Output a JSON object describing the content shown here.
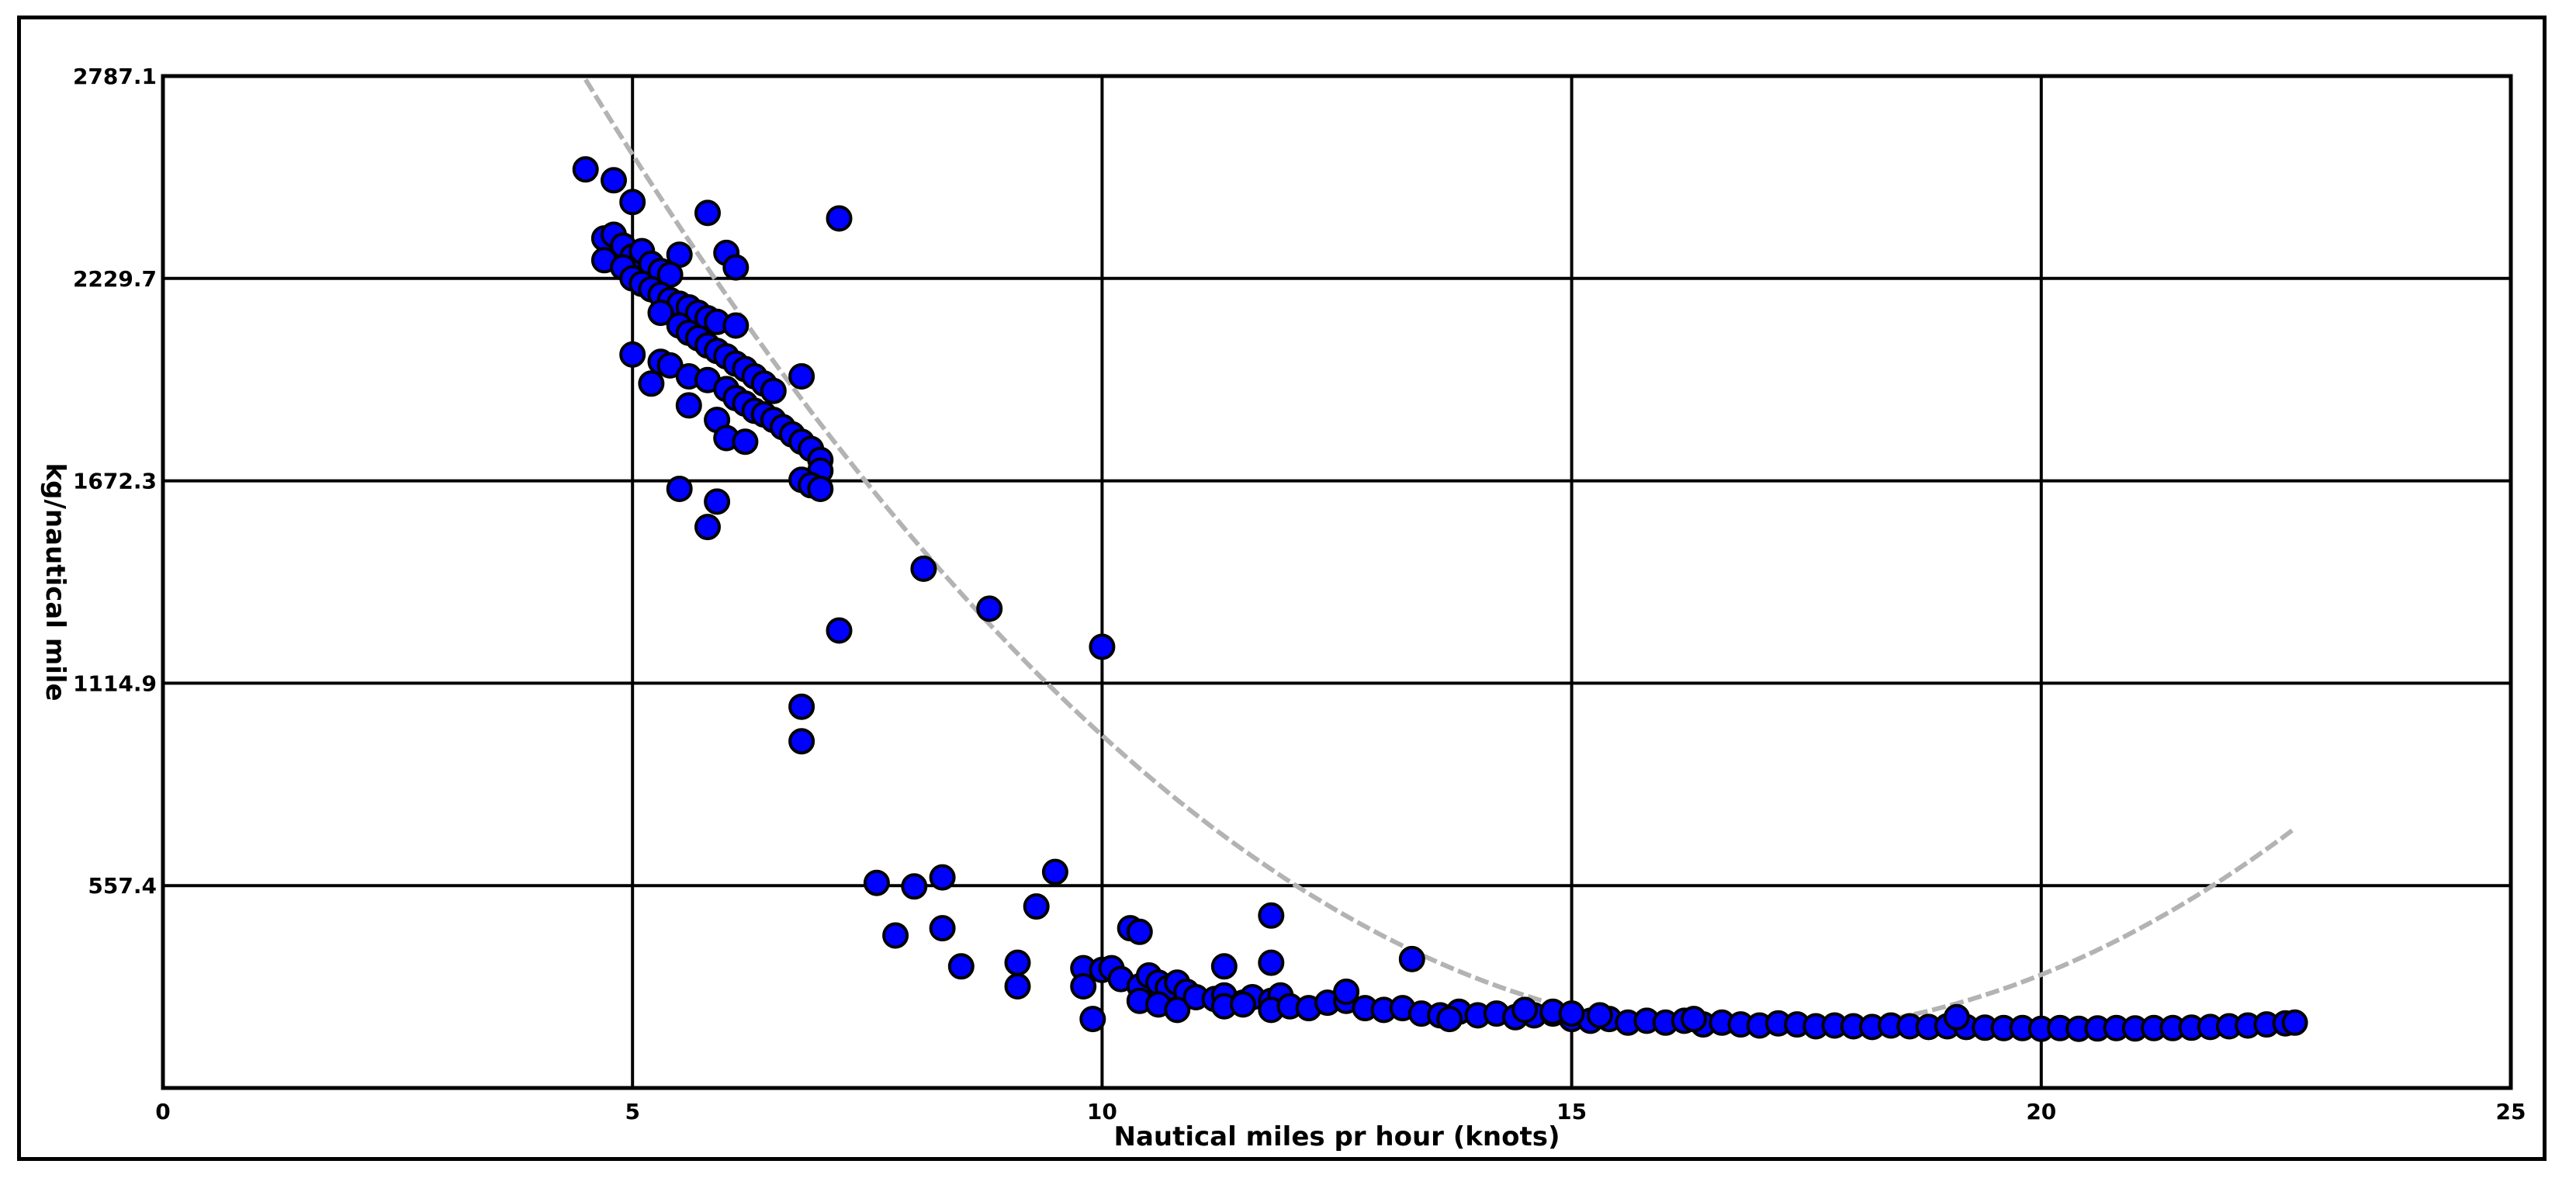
{
  "chart_data": {
    "type": "scatter",
    "title": "",
    "xlabel": "Nautical miles pr hour (knots)",
    "ylabel": "kg/nautical mile",
    "xlim": [
      0,
      25
    ],
    "ylim": [
      0,
      2787.1
    ],
    "x_ticks": [
      "0",
      "5",
      "10",
      "15",
      "20",
      "25"
    ],
    "y_ticks": [
      "557.4",
      "1114.9",
      "1672.3",
      "2229.7",
      "2787.1"
    ],
    "grid": true,
    "legend": "none",
    "colors": {
      "point_fill": "#0000ff",
      "point_stroke": "#000000",
      "trend": "#b3b3b3",
      "grid": "#000000"
    },
    "series": [
      {
        "points": [
          [
            4.5,
            2530
          ],
          [
            4.8,
            2500
          ],
          [
            5.0,
            2440
          ],
          [
            5.8,
            2410
          ],
          [
            7.2,
            2395
          ],
          [
            6.0,
            2300
          ],
          [
            6.1,
            2260
          ],
          [
            5.5,
            2295
          ],
          [
            4.7,
            2340
          ],
          [
            4.8,
            2350
          ],
          [
            4.9,
            2320
          ],
          [
            5.0,
            2290
          ],
          [
            5.1,
            2305
          ],
          [
            5.2,
            2270
          ],
          [
            5.3,
            2250
          ],
          [
            5.4,
            2240
          ],
          [
            4.7,
            2280
          ],
          [
            4.9,
            2260
          ],
          [
            5.0,
            2230
          ],
          [
            5.1,
            2215
          ],
          [
            5.2,
            2200
          ],
          [
            5.3,
            2185
          ],
          [
            5.4,
            2170
          ],
          [
            5.5,
            2160
          ],
          [
            5.6,
            2150
          ],
          [
            5.7,
            2135
          ],
          [
            5.8,
            2120
          ],
          [
            5.9,
            2110
          ],
          [
            6.1,
            2100
          ],
          [
            5.3,
            2135
          ],
          [
            5.5,
            2100
          ],
          [
            5.6,
            2080
          ],
          [
            5.7,
            2065
          ],
          [
            5.8,
            2045
          ],
          [
            5.9,
            2030
          ],
          [
            6.0,
            2015
          ],
          [
            6.1,
            1995
          ],
          [
            6.2,
            1980
          ],
          [
            6.3,
            1960
          ],
          [
            6.4,
            1940
          ],
          [
            6.5,
            1920
          ],
          [
            5.0,
            2020
          ],
          [
            5.3,
            2000
          ],
          [
            5.2,
            1940
          ],
          [
            5.4,
            1990
          ],
          [
            5.6,
            1960
          ],
          [
            5.8,
            1950
          ],
          [
            6.0,
            1925
          ],
          [
            6.1,
            1900
          ],
          [
            6.2,
            1885
          ],
          [
            6.3,
            1865
          ],
          [
            6.4,
            1855
          ],
          [
            6.5,
            1840
          ],
          [
            6.6,
            1820
          ],
          [
            6.7,
            1800
          ],
          [
            6.8,
            1780
          ],
          [
            6.9,
            1760
          ],
          [
            7.0,
            1730
          ],
          [
            7.0,
            1700
          ],
          [
            6.8,
            1675
          ],
          [
            6.9,
            1660
          ],
          [
            7.0,
            1650
          ],
          [
            5.6,
            1880
          ],
          [
            5.9,
            1840
          ],
          [
            6.0,
            1790
          ],
          [
            6.2,
            1780
          ],
          [
            6.8,
            1960
          ],
          [
            5.5,
            1650
          ],
          [
            5.9,
            1615
          ],
          [
            5.8,
            1545
          ],
          [
            8.1,
            1430
          ],
          [
            8.8,
            1320
          ],
          [
            7.2,
            1260
          ],
          [
            10.0,
            1215
          ],
          [
            6.8,
            1050
          ],
          [
            6.8,
            955
          ],
          [
            7.6,
            565
          ],
          [
            8.0,
            555
          ],
          [
            8.3,
            580
          ],
          [
            9.5,
            595
          ],
          [
            9.3,
            500
          ],
          [
            7.8,
            420
          ],
          [
            8.3,
            440
          ],
          [
            8.5,
            335
          ],
          [
            9.1,
            345
          ],
          [
            9.1,
            280
          ],
          [
            9.8,
            330
          ],
          [
            9.8,
            280
          ],
          [
            10.0,
            325
          ],
          [
            10.1,
            330
          ],
          [
            10.3,
            440
          ],
          [
            10.4,
            430
          ],
          [
            10.2,
            300
          ],
          [
            10.4,
            280
          ],
          [
            10.5,
            310
          ],
          [
            10.6,
            290
          ],
          [
            10.7,
            275
          ],
          [
            10.8,
            290
          ],
          [
            10.9,
            265
          ],
          [
            10.4,
            240
          ],
          [
            10.6,
            230
          ],
          [
            10.8,
            215
          ],
          [
            9.9,
            190
          ],
          [
            11.0,
            250
          ],
          [
            11.2,
            245
          ],
          [
            11.3,
            255
          ],
          [
            11.5,
            235
          ],
          [
            11.6,
            250
          ],
          [
            11.8,
            240
          ],
          [
            11.9,
            255
          ],
          [
            11.3,
            225
          ],
          [
            11.5,
            230
          ],
          [
            11.8,
            215
          ],
          [
            12.0,
            225
          ],
          [
            12.2,
            220
          ],
          [
            12.4,
            235
          ],
          [
            12.6,
            240
          ],
          [
            12.8,
            220
          ],
          [
            13.0,
            215
          ],
          [
            13.2,
            220
          ],
          [
            13.4,
            205
          ],
          [
            13.6,
            200
          ],
          [
            13.8,
            210
          ],
          [
            14.0,
            200
          ],
          [
            14.2,
            205
          ],
          [
            14.4,
            195
          ],
          [
            14.6,
            200
          ],
          [
            14.8,
            205
          ],
          [
            15.0,
            190
          ],
          [
            15.2,
            185
          ],
          [
            15.4,
            190
          ],
          [
            15.6,
            180
          ],
          [
            15.8,
            185
          ],
          [
            16.0,
            180
          ],
          [
            16.2,
            185
          ],
          [
            16.4,
            175
          ],
          [
            16.6,
            180
          ],
          [
            16.8,
            175
          ],
          [
            17.0,
            172
          ],
          [
            17.2,
            178
          ],
          [
            17.4,
            175
          ],
          [
            17.6,
            170
          ],
          [
            17.8,
            172
          ],
          [
            18.0,
            170
          ],
          [
            18.2,
            168
          ],
          [
            18.4,
            172
          ],
          [
            18.6,
            170
          ],
          [
            18.8,
            168
          ],
          [
            19.0,
            170
          ],
          [
            19.2,
            168
          ],
          [
            19.4,
            166
          ],
          [
            19.6,
            165
          ],
          [
            19.8,
            165
          ],
          [
            20.0,
            163
          ],
          [
            20.2,
            165
          ],
          [
            20.4,
            163
          ],
          [
            20.6,
            164
          ],
          [
            20.8,
            165
          ],
          [
            21.0,
            164
          ],
          [
            21.2,
            165
          ],
          [
            21.4,
            165
          ],
          [
            21.6,
            166
          ],
          [
            21.8,
            168
          ],
          [
            22.0,
            170
          ],
          [
            22.2,
            172
          ],
          [
            22.4,
            175
          ],
          [
            22.6,
            178
          ],
          [
            22.7,
            180
          ],
          [
            11.8,
            475
          ],
          [
            11.8,
            345
          ],
          [
            11.3,
            335
          ],
          [
            13.3,
            355
          ],
          [
            12.6,
            265
          ],
          [
            19.1,
            195
          ],
          [
            14.5,
            215
          ],
          [
            14.8,
            210
          ],
          [
            15.0,
            205
          ],
          [
            13.7,
            190
          ],
          [
            15.3,
            200
          ],
          [
            16.3,
            190
          ]
        ]
      }
    ],
    "trend": {
      "type": "quadratic",
      "coefficients": [
        5018,
        -574.1,
        16.94
      ],
      "x_range": [
        4.5,
        22.7
      ]
    }
  }
}
